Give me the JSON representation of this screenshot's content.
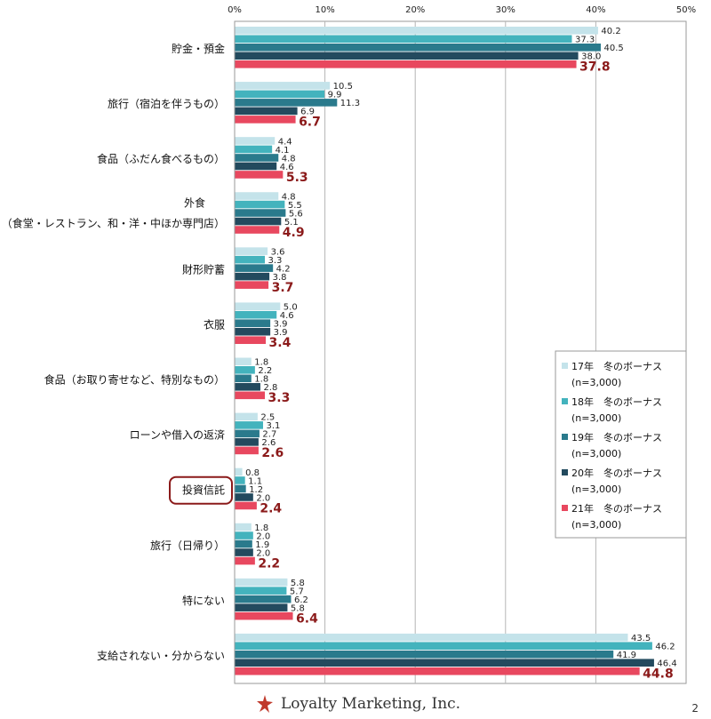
{
  "chart_data": {
    "type": "bar",
    "orientation": "horizontal",
    "xlim": [
      0,
      50
    ],
    "x_ticks": [
      "0%",
      "10%",
      "20%",
      "30%",
      "40%",
      "50%"
    ],
    "grid": true,
    "legend_position": "right",
    "categories": [
      {
        "label": "貯金・預金"
      },
      {
        "label": "旅行（宿泊を伴うもの）"
      },
      {
        "label": "食品（ふだん食べるもの）"
      },
      {
        "label": "外食",
        "label2": "（食堂・レストラン、和・洋・中ほか専門店）"
      },
      {
        "label": "財形貯蓄"
      },
      {
        "label": "衣服"
      },
      {
        "label": "食品（お取り寄せなど、特別なもの）"
      },
      {
        "label": "ローンや借入の返済"
      },
      {
        "label": "投資信託",
        "highlight": true
      },
      {
        "label": "旅行（日帰り）"
      },
      {
        "label": "特にない"
      },
      {
        "label": "支給されない・分からない"
      }
    ],
    "series": [
      {
        "name": "17年　冬のボーナス",
        "n": "(n=3,000)",
        "color": "#c4e3ea",
        "values": [
          40.2,
          10.5,
          4.4,
          4.8,
          3.6,
          5.0,
          1.8,
          2.5,
          0.8,
          1.8,
          5.8,
          43.5
        ],
        "labels": [
          "40.2",
          "10.5",
          "4.4",
          "4.8",
          "3.6",
          "5.0",
          "1.8",
          "2.5",
          "0.8",
          "1.8",
          "5.8",
          "43.5"
        ]
      },
      {
        "name": "18年　冬のボーナス",
        "n": "(n=3,000)",
        "color": "#43b3bd",
        "values": [
          37.3,
          9.9,
          4.1,
          5.5,
          3.3,
          4.6,
          2.2,
          3.1,
          1.1,
          2.0,
          5.7,
          46.2
        ],
        "labels": [
          "37.3",
          "9.9",
          "4.1",
          "5.5",
          "3.3",
          "4.6",
          "2.2",
          "3.1",
          "1.1",
          "2.0",
          "5.7",
          "46.2"
        ]
      },
      {
        "name": "19年　冬のボーナス",
        "n": "(n=3,000)",
        "color": "#2a7a8c",
        "values": [
          40.5,
          11.3,
          4.8,
          5.6,
          4.2,
          3.9,
          1.8,
          2.7,
          1.2,
          1.9,
          6.2,
          41.9
        ],
        "labels": [
          "40.5",
          "11.3",
          "4.8",
          "5.6",
          "4.2",
          "3.9",
          "1.8",
          "2.7",
          "1.2",
          "1.9",
          "6.2",
          "41.9"
        ]
      },
      {
        "name": "20年　冬のボーナス",
        "n": "(n=3,000)",
        "color": "#234a5e",
        "values": [
          38.0,
          6.9,
          4.6,
          5.1,
          3.8,
          3.9,
          2.8,
          2.6,
          2.0,
          2.0,
          5.8,
          46.4
        ],
        "labels": [
          "38.0",
          "6.9",
          "4.6",
          "5.1",
          "3.8",
          "3.9",
          "2.8",
          "2.6",
          "2.0",
          "2.0",
          "5.8",
          "46.4"
        ]
      },
      {
        "name": "21年　冬のボーナス",
        "n": "(n=3,000)",
        "color": "#e8485f",
        "highlight": true,
        "values": [
          37.8,
          6.7,
          5.3,
          4.9,
          3.7,
          3.4,
          3.3,
          2.6,
          2.4,
          2.2,
          6.4,
          44.8
        ],
        "labels": [
          "37.8",
          "6.7",
          "5.3",
          "4.9",
          "3.7",
          "3.4",
          "3.3",
          "2.6",
          "2.4",
          "2.2",
          "6.4",
          "44.8"
        ]
      }
    ],
    "highlight_label_color": "#8b1a1a",
    "highlight_box_color": "#8b1a1a"
  },
  "footer": {
    "company": "Loyalty Marketing, Inc.",
    "page_number": "2",
    "logo_color": "#c0392b",
    "logo_icon": "star-swirl-icon"
  }
}
